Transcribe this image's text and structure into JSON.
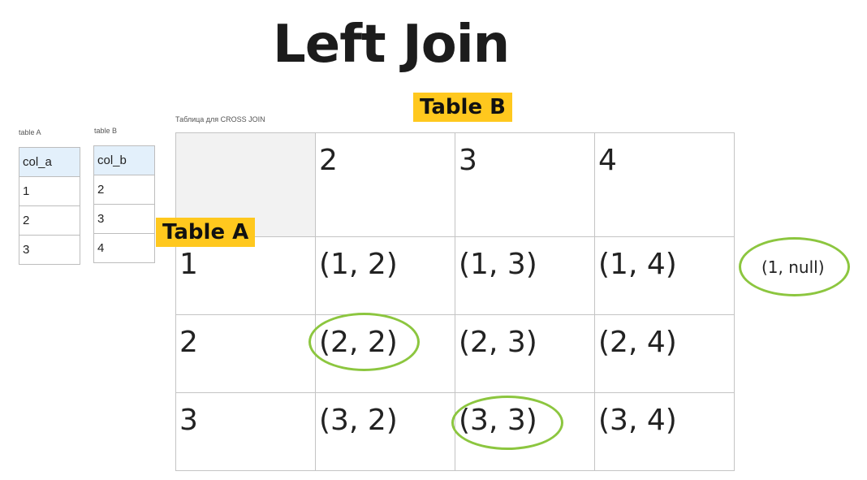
{
  "title": "Left Join",
  "table_a": {
    "caption": "table A",
    "header": "col_a",
    "rows": [
      "1",
      "2",
      "3"
    ]
  },
  "table_b": {
    "caption": "table B",
    "header": "col_b",
    "rows": [
      "2",
      "3",
      "4"
    ]
  },
  "cross_join_caption": "Таблица для CROSS JOIN",
  "label_table_a": "Table A",
  "label_table_b": "Table B",
  "grid": {
    "col_headers": [
      "2",
      "3",
      "4"
    ],
    "rows": [
      {
        "key": "1",
        "cells": [
          "(1, 2)",
          "(1, 3)",
          "(1, 4)"
        ]
      },
      {
        "key": "2",
        "cells": [
          "(2, 2)",
          "(2, 3)",
          "(2, 4)"
        ]
      },
      {
        "key": "3",
        "cells": [
          "(3, 2)",
          "(3, 3)",
          "(3, 4)"
        ]
      }
    ]
  },
  "outside_result": "(1, null)",
  "highlight_color": "#8cc63f",
  "tag_color": "#ffc81e"
}
